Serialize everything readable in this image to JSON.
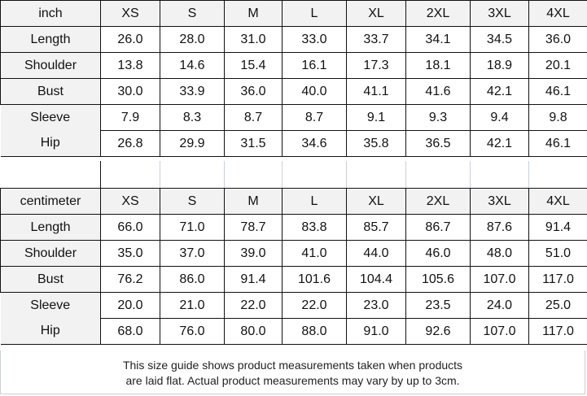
{
  "sizes": [
    "XS",
    "S",
    "M",
    "L",
    "XL",
    "2XL",
    "3XL",
    "4XL"
  ],
  "inch": {
    "unit": "inch",
    "rows": [
      {
        "label": "Length",
        "values": [
          "26.0",
          "28.0",
          "31.0",
          "33.0",
          "33.7",
          "34.1",
          "34.5",
          "36.0"
        ]
      },
      {
        "label": "Shoulder",
        "values": [
          "13.8",
          "14.6",
          "15.4",
          "16.1",
          "17.3",
          "18.1",
          "18.9",
          "20.1"
        ]
      },
      {
        "label": "Bust",
        "values": [
          "30.0",
          "33.9",
          "36.0",
          "40.0",
          "41.1",
          "41.6",
          "42.1",
          "46.1"
        ]
      },
      {
        "label": "Sleeve",
        "values": [
          "7.9",
          "8.3",
          "8.7",
          "8.7",
          "9.1",
          "9.3",
          "9.4",
          "9.8"
        ]
      },
      {
        "label": "Hip",
        "values": [
          "26.8",
          "29.9",
          "31.5",
          "34.6",
          "35.8",
          "36.5",
          "42.1",
          "46.1"
        ]
      }
    ]
  },
  "cm": {
    "unit": "centimeter",
    "rows": [
      {
        "label": "Length",
        "values": [
          "66.0",
          "71.0",
          "78.7",
          "83.8",
          "85.7",
          "86.7",
          "87.6",
          "91.4"
        ]
      },
      {
        "label": "Shoulder",
        "values": [
          "35.0",
          "37.0",
          "39.0",
          "41.0",
          "44.0",
          "46.0",
          "48.0",
          "51.0"
        ]
      },
      {
        "label": "Bust",
        "values": [
          "76.2",
          "86.0",
          "91.4",
          "101.6",
          "104.4",
          "105.6",
          "107.0",
          "117.0"
        ]
      },
      {
        "label": "Sleeve",
        "values": [
          "20.0",
          "21.0",
          "22.0",
          "22.0",
          "23.0",
          "23.5",
          "24.0",
          "25.0"
        ]
      },
      {
        "label": "Hip",
        "values": [
          "68.0",
          "76.0",
          "80.0",
          "88.0",
          "91.0",
          "92.6",
          "107.0",
          "117.0"
        ]
      }
    ]
  },
  "note": [
    "This size guide shows product measurements taken when products",
    "are laid flat. Actual product measurements may vary by up to 3cm."
  ]
}
